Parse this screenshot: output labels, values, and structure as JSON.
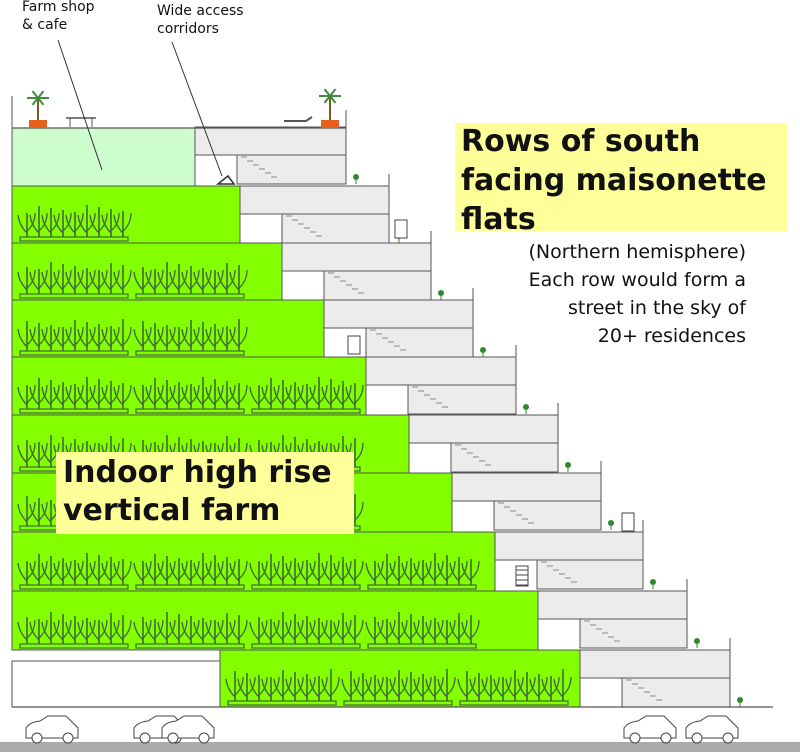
{
  "labels": {
    "farm_shop": [
      "Farm shop",
      "& cafe"
    ],
    "corridors": [
      "Wide access",
      "corridors"
    ],
    "title_lines": [
      "Rows of south",
      "facing maisonette",
      "flats"
    ],
    "subtitle_lines": [
      "(Northern hemisphere)",
      "Each row would form a",
      "street in the sky of",
      "20+ residences"
    ],
    "farm_lines": [
      "Indoor high rise",
      "vertical farm"
    ]
  },
  "colors": {
    "farm_green": "#84ff00",
    "plant": "#3f6a40",
    "shop_glass": "#cdfccf",
    "flat_fill": "#ececec",
    "outline": "#555555",
    "highlight": "#ffff99",
    "ground": "#aaaaaa"
  },
  "icons": [
    "plant-icon",
    "potted-palm-icon",
    "car-icon",
    "door-icon",
    "ladder-icon",
    "deck-chair-icon",
    "bench-icon"
  ]
}
